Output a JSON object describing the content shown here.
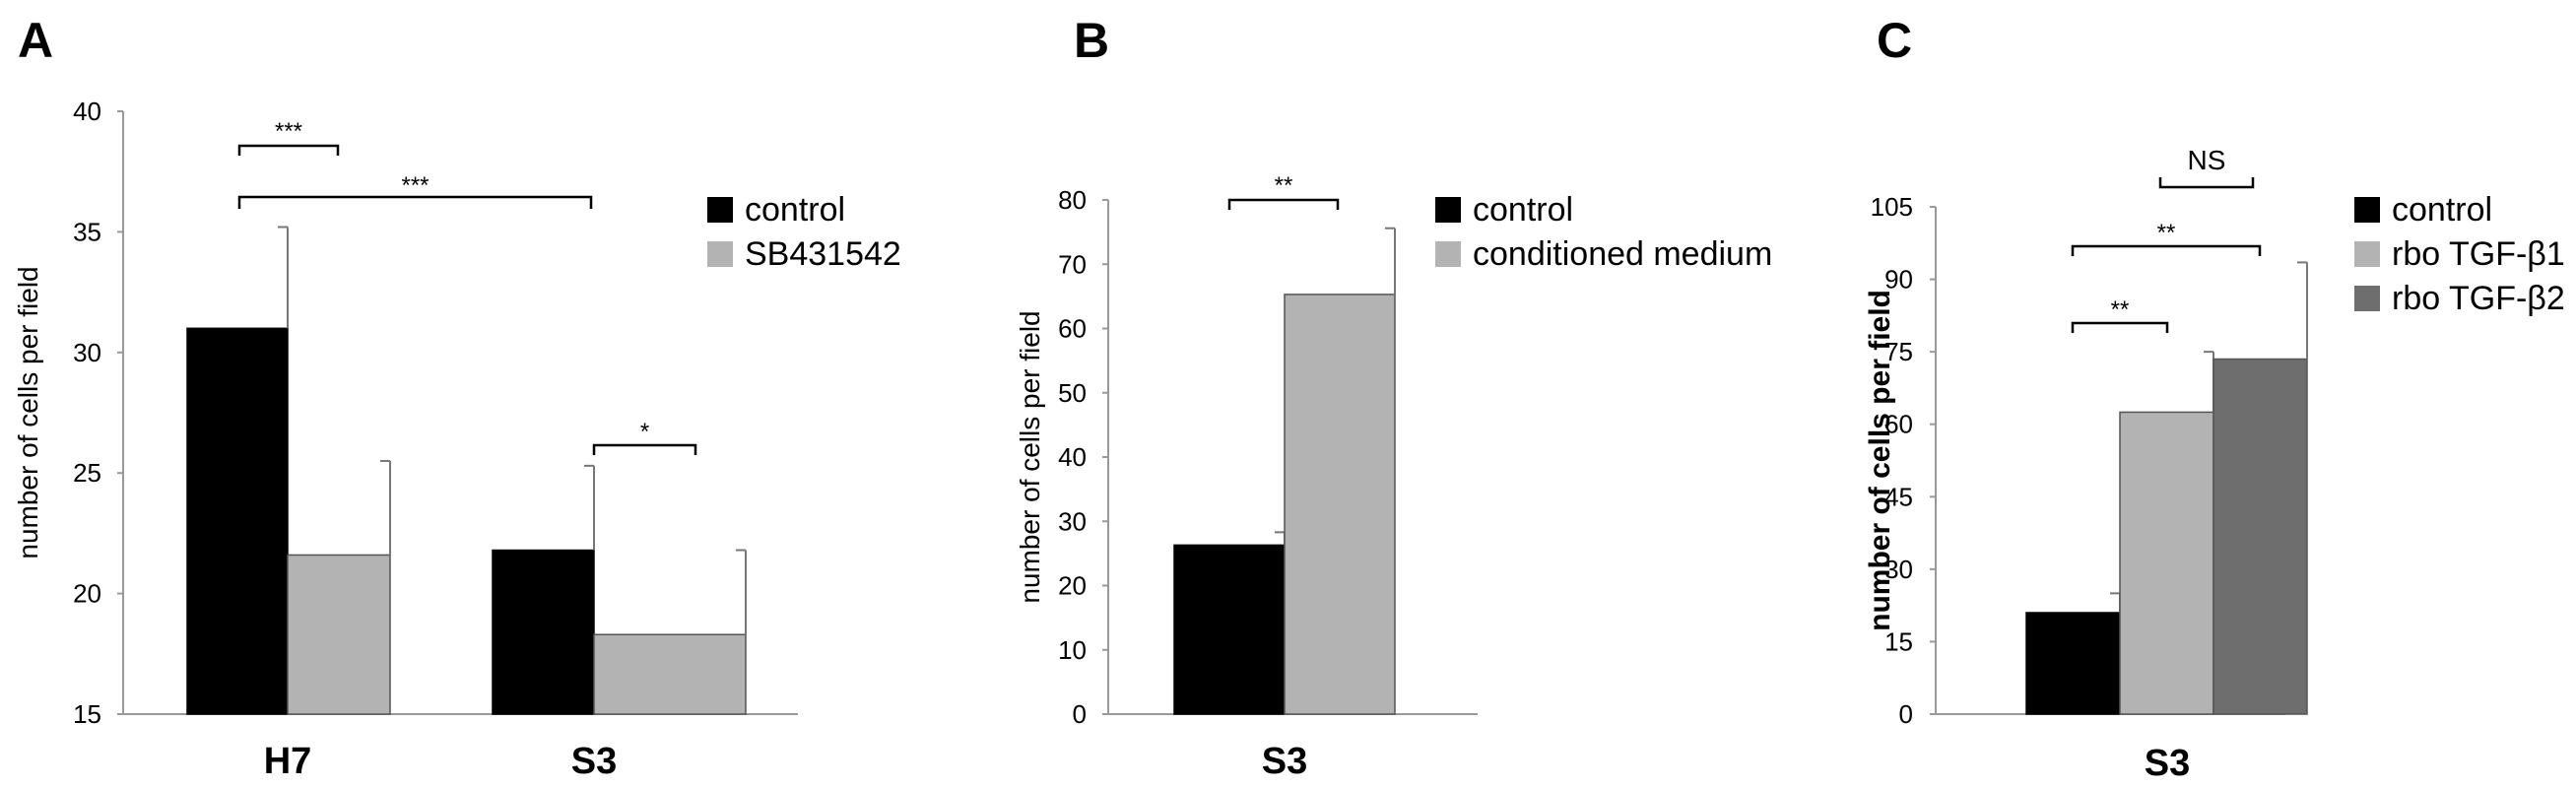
{
  "chart_data": [
    {
      "panel": "A",
      "type": "bar",
      "categories": [
        "H7",
        "S3"
      ],
      "series": [
        {
          "name": "control",
          "color": "#000000",
          "values": [
            31.0,
            21.8
          ],
          "errors": [
            4.2,
            3.5
          ]
        },
        {
          "name": "SB431542",
          "color": "#b3b3b3",
          "values": [
            21.6,
            18.3
          ],
          "errors": [
            3.9,
            3.5
          ]
        }
      ],
      "ylabel": "number of cells per field",
      "ylim": [
        15,
        40
      ],
      "yticks": [
        15,
        20,
        25,
        30,
        35,
        40
      ],
      "legend": "right",
      "significance": [
        {
          "label": "***"
        },
        {
          "label": "***"
        },
        {
          "label": "*"
        }
      ]
    },
    {
      "panel": "B",
      "type": "bar",
      "categories": [
        "S3"
      ],
      "series": [
        {
          "name": "control",
          "color": "#000000",
          "values": [
            26.3
          ],
          "errors": [
            2.0
          ]
        },
        {
          "name": "conditioned medium",
          "color": "#b3b3b3",
          "values": [
            65.3
          ],
          "errors": [
            10.3
          ]
        }
      ],
      "ylabel": "number of cells per field",
      "ylim": [
        0,
        80
      ],
      "yticks": [
        0,
        10,
        20,
        30,
        40,
        50,
        60,
        70,
        80
      ],
      "legend": "right",
      "significance": [
        {
          "label": "**"
        }
      ]
    },
    {
      "panel": "C",
      "type": "bar",
      "categories": [
        "S3"
      ],
      "series": [
        {
          "name": "control",
          "color": "#000000",
          "values": [
            21.0
          ],
          "errors": [
            4.0
          ]
        },
        {
          "name": "rbo TGF-β1",
          "color": "#b3b3b3",
          "values": [
            62.5
          ],
          "errors": [
            12.5
          ]
        },
        {
          "name": "rbo TGF-β2",
          "color": "#6e6e6e",
          "values": [
            73.5
          ],
          "errors": [
            20.0
          ]
        }
      ],
      "ylabel": "number of cells per field",
      "ylim": [
        0,
        105
      ],
      "yticks": [
        0,
        15,
        30,
        45,
        60,
        75,
        90,
        105
      ],
      "legend": "right",
      "significance": [
        {
          "label": "**"
        },
        {
          "label": "**"
        },
        {
          "label": "NS"
        }
      ]
    }
  ]
}
